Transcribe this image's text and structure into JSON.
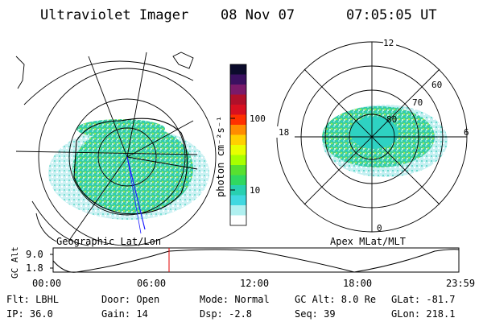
{
  "header": {
    "instrument": "Ultraviolet Imager",
    "date": "08 Nov 07",
    "time": "07:05:05 UT"
  },
  "colorbar": {
    "label": "photon cm⁻²s⁻¹",
    "ticks": [
      "100",
      "10"
    ],
    "colors": [
      "#0b0b2b",
      "#3a1060",
      "#7a1a6a",
      "#b0102a",
      "#d81020",
      "#ff3000",
      "#ff8c00",
      "#ffd000",
      "#e8ff00",
      "#a8ff00",
      "#58e030",
      "#30d860",
      "#28d0b0",
      "#40d8e0",
      "#b0f0f0",
      "#ffffff"
    ]
  },
  "geo_map": {
    "label": "Geographic Lat/Lon"
  },
  "mag_map": {
    "label": "Apex MLat/MLT",
    "mlt_labels": {
      "top": "12",
      "left": "18",
      "right": "6",
      "bottom": "0"
    },
    "lat_labels": [
      "60",
      "70",
      "80"
    ]
  },
  "gc_alt_plot": {
    "ylabel": "GC Alt",
    "y_ticks": [
      "9.0",
      "1.8"
    ],
    "x_ticks": [
      "00:00",
      "06:00",
      "12:00",
      "18:00",
      "23:59"
    ],
    "marker_color": "#e00000"
  },
  "info": {
    "filter": "Flt: LBHL",
    "door": "Door: Open",
    "mode": "Mode: Normal",
    "gc_alt": "GC Alt: 8.0 Re",
    "glat": "GLat: -81.7",
    "ip": "IP: 36.0",
    "gain": "Gain: 14",
    "dsp": "Dsp:   -2.8",
    "seq": "Seq: 39",
    "glon": "GLon: 218.1"
  }
}
